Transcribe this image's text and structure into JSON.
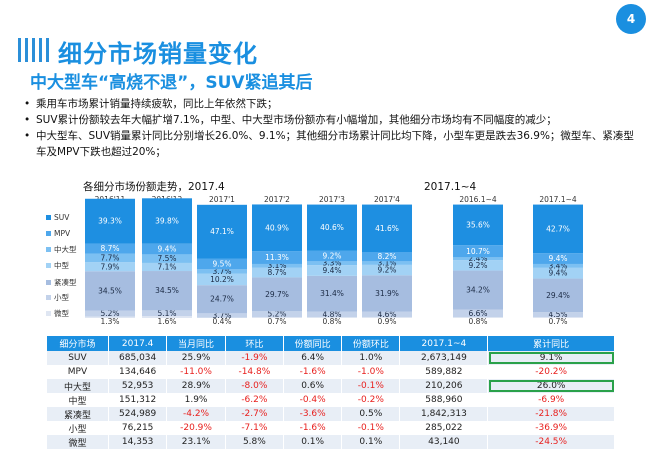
{
  "page_number": "4",
  "title": "细分市场销量变化",
  "subtitle": "中大型车“高烧不退”，SUV紧追其后",
  "bullets": [
    "乘用车市场累计销量持续疲软，同比上年依然下跌；",
    "SUV累计份额较去年大幅扩增7.1%，中型、中大型市场份额亦有小幅增加，其他细分市场均有不同幅度的减少；",
    "中大型车、SUV销量累计同比分别增长26.0%、9.1%；其他细分市场累计同比均下降，小型车更是跌去36.9%；微型车、紧凑型车及MPV下跌也超过20%；"
  ],
  "colors": {
    "accent": "#1a8fe0",
    "SUV": "#1e8fe1",
    "MPV": "#4ea7ec",
    "中大型": "#7cc0f2",
    "中型": "#a2d2f5",
    "紧凑型": "#a6bde0",
    "小型": "#c3d2ea",
    "微型": "#dfe6f2",
    "negative": "#e8201e",
    "highlight": "#2aa14a"
  },
  "chart_data": [
    {
      "type": "bar",
      "stacked": true,
      "percent": true,
      "title": "各细分市场份额走势，2017.4",
      "categories": [
        "2016'11",
        "2016'12",
        "2017'1",
        "2017'2",
        "2017'3",
        "2017'4"
      ],
      "series": [
        {
          "name": "微型",
          "values": [
            1.3,
            1.6,
            0.4,
            0.7,
            0.8,
            0.9
          ]
        },
        {
          "name": "小型",
          "values": [
            5.2,
            5.1,
            3.7,
            5.2,
            4.8,
            4.6
          ]
        },
        {
          "name": "紧凑型",
          "values": [
            34.5,
            34.5,
            24.7,
            29.7,
            31.4,
            31.9
          ]
        },
        {
          "name": "中型",
          "values": [
            7.9,
            7.1,
            10.2,
            8.7,
            9.4,
            9.2
          ]
        },
        {
          "name": "中大型",
          "values": [
            7.7,
            7.5,
            3.7,
            3.1,
            3.3,
            3.1
          ]
        },
        {
          "name": "MPV",
          "values": [
            8.7,
            9.4,
            9.5,
            11.3,
            9.2,
            8.2
          ]
        },
        {
          "name": "SUV",
          "values": [
            39.3,
            39.8,
            47.1,
            40.9,
            40.6,
            41.6
          ]
        }
      ],
      "legend": "left"
    },
    {
      "type": "bar",
      "stacked": true,
      "percent": true,
      "title": "2017.1~4",
      "categories": [
        "2016.1~4",
        "2017.1~4"
      ],
      "series": [
        {
          "name": "微型",
          "values": [
            0.8,
            0.7
          ]
        },
        {
          "name": "小型",
          "values": [
            6.6,
            4.5
          ]
        },
        {
          "name": "紧凑型",
          "values": [
            34.2,
            29.4
          ]
        },
        {
          "name": "中型",
          "values": [
            9.2,
            9.4
          ]
        },
        {
          "name": "中大型",
          "values": [
            2.4,
            3.4
          ]
        },
        {
          "name": "MPV",
          "values": [
            10.7,
            9.4
          ]
        },
        {
          "name": "SUV",
          "values": [
            35.6,
            42.7
          ]
        }
      ]
    },
    {
      "type": "table",
      "headers": [
        "细分市场",
        "2017.4",
        "当月同比",
        "环比",
        "份额同比",
        "份额环比",
        "2017.1~4",
        "累计同比"
      ],
      "rows": [
        [
          "SUV",
          "685,034",
          "25.9%",
          "-1.9%",
          "6.4%",
          "1.0%",
          "2,673,149",
          "9.1%"
        ],
        [
          "MPV",
          "134,646",
          "-11.0%",
          "-14.8%",
          "-1.6%",
          "-1.0%",
          "589,882",
          "-20.2%"
        ],
        [
          "中大型",
          "52,953",
          "28.9%",
          "-8.0%",
          "0.6%",
          "-0.1%",
          "210,206",
          "26.0%"
        ],
        [
          "中型",
          "151,312",
          "1.9%",
          "-6.2%",
          "-0.4%",
          "-0.2%",
          "588,960",
          "-6.9%"
        ],
        [
          "紧凑型",
          "524,989",
          "-4.2%",
          "-2.7%",
          "-3.6%",
          "0.5%",
          "1,842,313",
          "-21.8%"
        ],
        [
          "小型",
          "76,215",
          "-20.9%",
          "-7.1%",
          "-1.6%",
          "-0.1%",
          "285,022",
          "-36.9%"
        ],
        [
          "微型",
          "14,353",
          "23.1%",
          "5.8%",
          "0.1%",
          "0.1%",
          "43,140",
          "-24.5%"
        ]
      ],
      "highlighted_cells": [
        [
          0,
          7
        ],
        [
          2,
          7
        ]
      ]
    }
  ]
}
